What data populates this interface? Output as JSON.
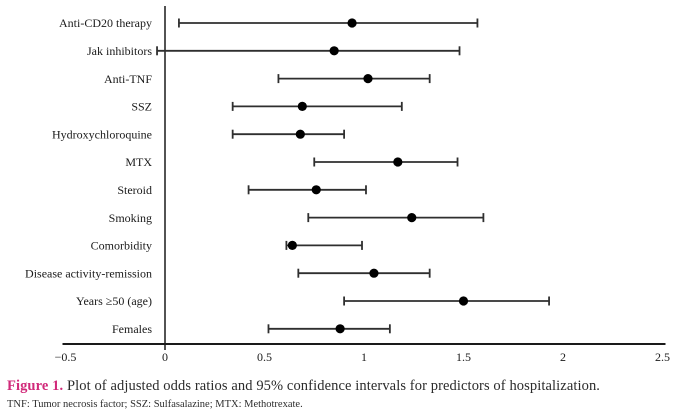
{
  "colors": {
    "marker": "#000000",
    "ci_line": "#2f2f2f",
    "axis_line": "#1a1a1a",
    "label_text": "#1a1a1a",
    "caption_label": "#d12a7a",
    "caption_text": "#2b2b2b"
  },
  "chart_data": {
    "type": "scatter",
    "subtype": "forest-plot-odds-ratios",
    "title": "",
    "xlabel": "",
    "ylabel": "",
    "xlim": [
      -0.5,
      2.5
    ],
    "grid": false,
    "legend": false,
    "x_ticks": [
      {
        "value": -0.5,
        "label": "−0.5"
      },
      {
        "value": 0,
        "label": "0"
      },
      {
        "value": 0.5,
        "label": "0.5"
      },
      {
        "value": 1,
        "label": "1"
      },
      {
        "value": 1.5,
        "label": "1.5"
      },
      {
        "value": 2,
        "label": "2"
      },
      {
        "value": 2.5,
        "label": "2.5"
      }
    ],
    "reference_line_x": 0,
    "rows": [
      {
        "label": "Anti-CD20 therapy",
        "or": 0.94,
        "ci_low": 0.07,
        "ci_high": 1.57
      },
      {
        "label": "Jak inhibitors",
        "or": 0.85,
        "ci_low": -0.04,
        "ci_high": 1.48
      },
      {
        "label": "Anti-TNF",
        "or": 1.02,
        "ci_low": 0.57,
        "ci_high": 1.33
      },
      {
        "label": "SSZ",
        "or": 0.69,
        "ci_low": 0.34,
        "ci_high": 1.19
      },
      {
        "label": "Hydroxychloroquine",
        "or": 0.68,
        "ci_low": 0.34,
        "ci_high": 0.9
      },
      {
        "label": "MTX",
        "or": 1.17,
        "ci_low": 0.75,
        "ci_high": 1.47
      },
      {
        "label": "Steroid",
        "or": 0.76,
        "ci_low": 0.42,
        "ci_high": 1.01
      },
      {
        "label": "Smoking",
        "or": 1.24,
        "ci_low": 0.72,
        "ci_high": 1.6
      },
      {
        "label": "Comorbidity",
        "or": 0.64,
        "ci_low": 0.61,
        "ci_high": 0.99
      },
      {
        "label": "Disease activity-remission",
        "or": 1.05,
        "ci_low": 0.67,
        "ci_high": 1.33
      },
      {
        "label": "Years ≥50 (age)",
        "or": 1.5,
        "ci_low": 0.9,
        "ci_high": 1.93
      },
      {
        "label": "Females",
        "or": 0.88,
        "ci_low": 0.52,
        "ci_high": 1.13
      }
    ]
  },
  "caption": {
    "label": "Figure 1.",
    "text": "Plot of adjusted odds ratios and 95% confidence intervals for predictors of hospitalization."
  },
  "footnote": "TNF: Tumor necrosis factor; SSZ: Sulfasalazine; MTX: Methotrexate."
}
